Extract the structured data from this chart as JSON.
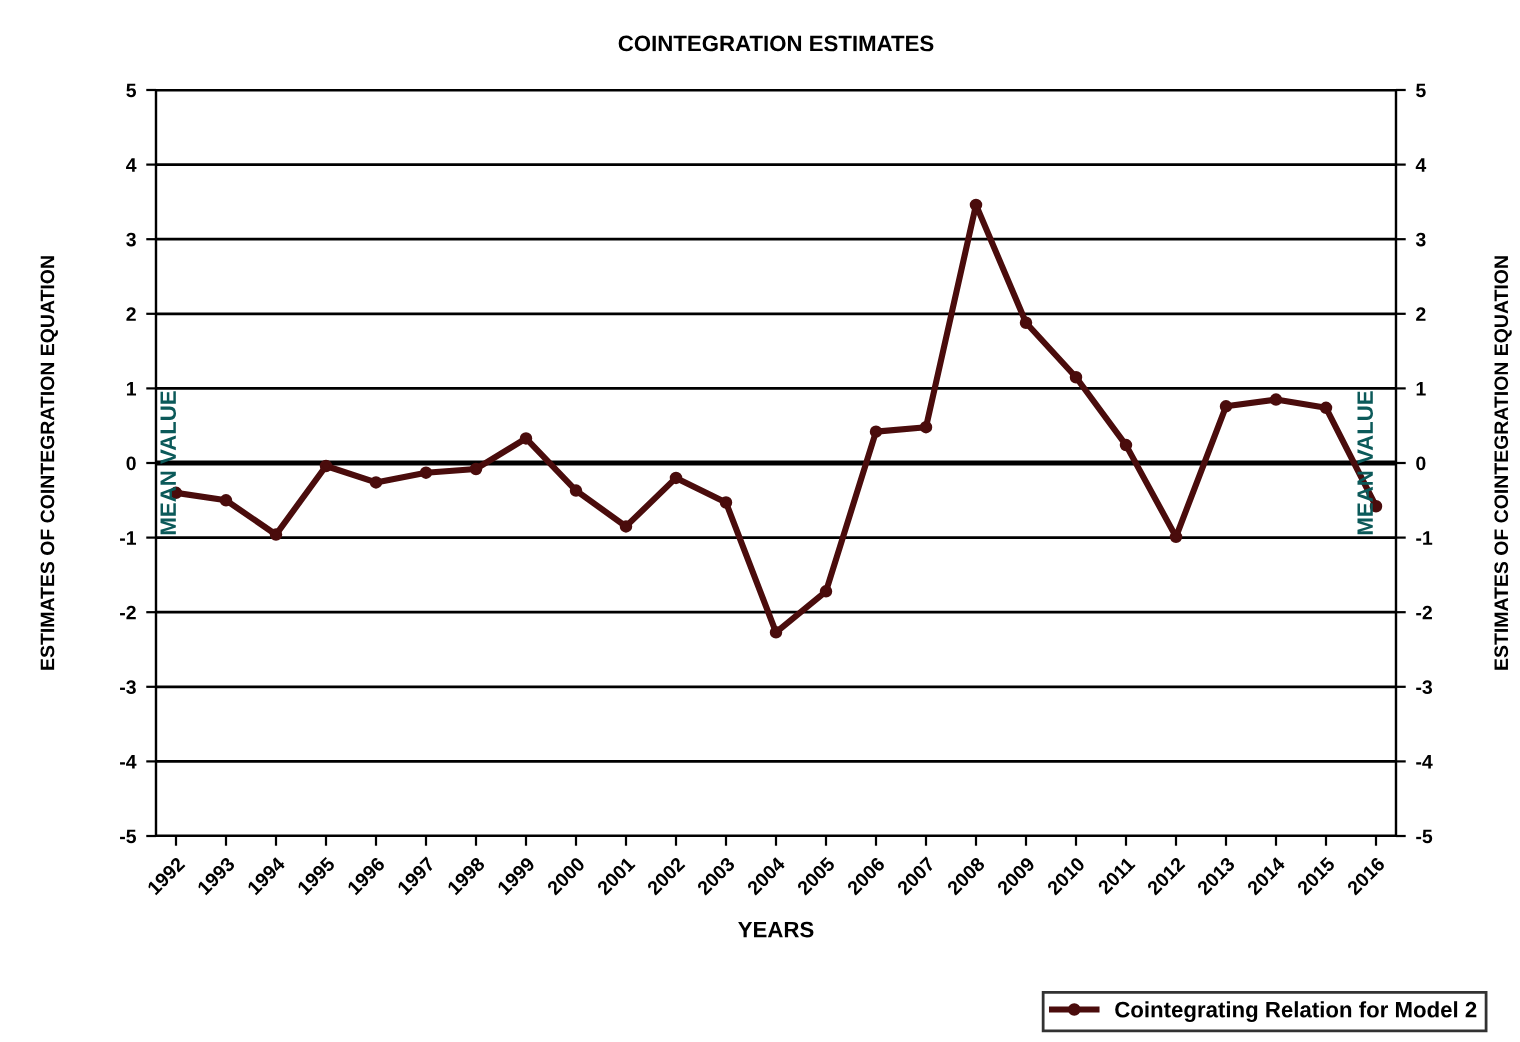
{
  "chart_data": {
    "type": "line",
    "title": "COINTEGRATION ESTIMATES",
    "xlabel": "YEARS",
    "ylabel": "ESTIMATES OF COINTEGRATION EQUATION",
    "y2label": "ESTIMATES OF COINTEGRATION EQUATION",
    "categories": [
      "1992",
      "1993",
      "1994",
      "1995",
      "1996",
      "1997",
      "1998",
      "1999",
      "2000",
      "2001",
      "2002",
      "2003",
      "2004",
      "2005",
      "2006",
      "2007",
      "2008",
      "2009",
      "2010",
      "2011",
      "2012",
      "2013",
      "2014",
      "2015",
      "2016"
    ],
    "series": [
      {
        "name": "Cointegrating Relation for Model 2",
        "color": "#4a0c0c",
        "values": [
          -0.4,
          -0.5,
          -0.96,
          -0.04,
          -0.26,
          -0.13,
          -0.08,
          0.33,
          -0.37,
          -0.85,
          -0.2,
          -0.53,
          -2.27,
          -1.72,
          0.42,
          0.48,
          3.46,
          1.88,
          1.15,
          0.24,
          -0.99,
          0.76,
          0.85,
          0.74,
          -0.58
        ]
      }
    ],
    "ylim": [
      -5,
      5
    ],
    "yticks": [
      -5,
      -4,
      -3,
      -2,
      -1,
      0,
      1,
      2,
      3,
      4,
      5
    ],
    "y2lim": [
      -5,
      5
    ],
    "y2ticks": [
      -5,
      -4,
      -3,
      -2,
      -1,
      0,
      1,
      2,
      3,
      4,
      5
    ],
    "ref_lines": [
      {
        "axis": "y",
        "value": 0,
        "label": "MEAN VALUE",
        "color": "#000000"
      }
    ],
    "annotations": [
      {
        "text": "MEAN VALUE",
        "y": 0
      }
    ],
    "grid": "y",
    "legend": "bottom right",
    "marker": "circle",
    "line_style": "solid"
  }
}
